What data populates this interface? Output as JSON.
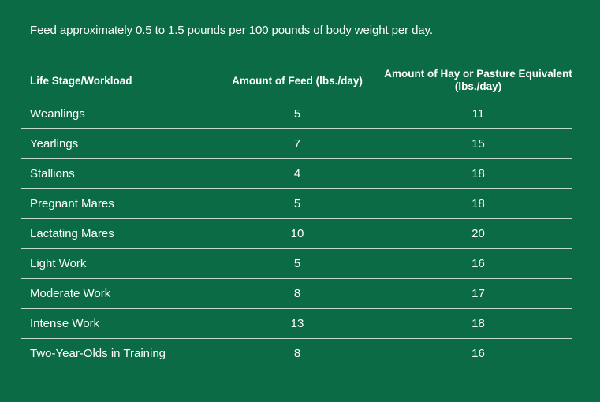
{
  "intro": "Feed approximately 0.5 to 1.5 pounds per 100 pounds of body weight per day.",
  "table": {
    "headers": [
      "Life Stage/Workload",
      "Amount of Feed (lbs./day)",
      "Amount of Hay or Pasture Equivalent (lbs./day)"
    ],
    "rows": [
      [
        "Weanlings",
        "5",
        "11"
      ],
      [
        "Yearlings",
        "7",
        "15"
      ],
      [
        "Stallions",
        "4",
        "18"
      ],
      [
        "Pregnant Mares",
        "5",
        "18"
      ],
      [
        "Lactating Mares",
        "10",
        "20"
      ],
      [
        "Light Work",
        "5",
        "16"
      ],
      [
        "Moderate Work",
        "8",
        "17"
      ],
      [
        "Intense Work",
        "13",
        "18"
      ],
      [
        "Two-Year-Olds in Training",
        "8",
        "16"
      ]
    ]
  },
  "colors": {
    "background": "#0b6b45",
    "text": "#ffffff"
  }
}
